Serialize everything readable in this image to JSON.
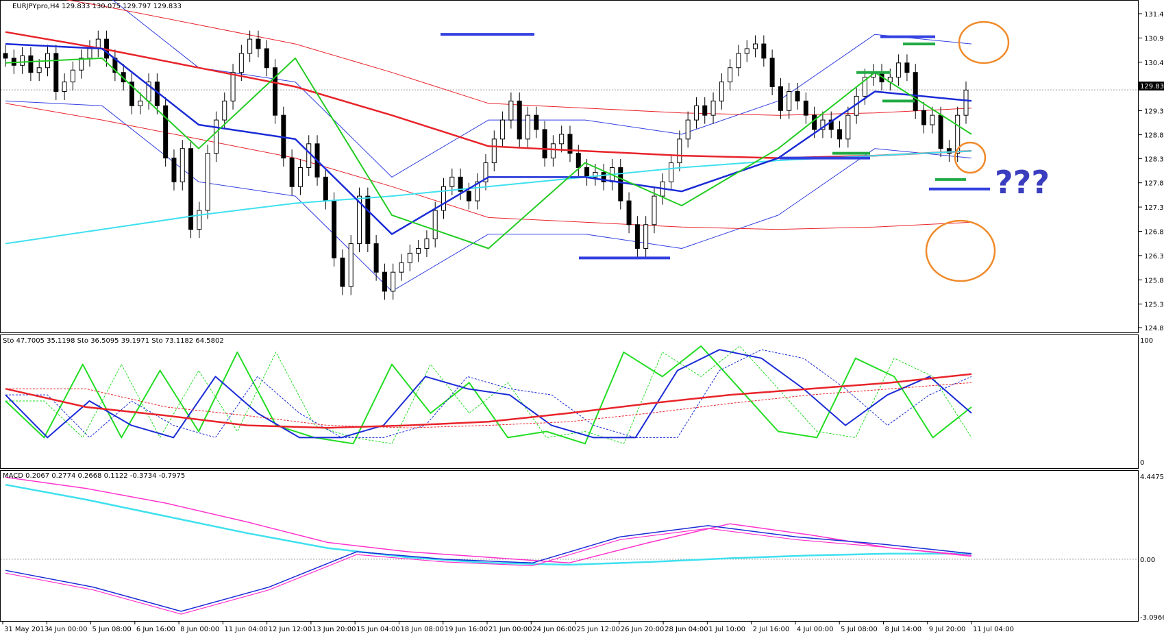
{
  "chart_data": {
    "type": "candlestick",
    "symbol_header": "EURJPYpro,H4  129.833 130.075 129.797 129.833",
    "current_price": "129.833",
    "price_axis": {
      "ticks": [
        "131.435",
        "130.925",
        "130.415",
        "129.905",
        "129.395",
        "128.890",
        "128.390",
        "127.880",
        "127.370",
        "126.860",
        "126.350",
        "125.840",
        "125.330",
        "124.835"
      ],
      "range": [
        124.835,
        131.435
      ]
    },
    "time_axis": [
      "31 May 2013",
      "4 Jun 00:00",
      "5 Jun 08:00",
      "6 Jun 16:00",
      "8 Jun 00:00",
      "11 Jun 04:00",
      "12 Jun 12:00",
      "13 Jun 20:00",
      "15 Jun 04:00",
      "18 Jun 08:00",
      "19 Jun 16:00",
      "21 Jun 00:00",
      "24 Jun 06:00",
      "25 Jun 12:00",
      "26 Jun 20:00",
      "28 Jun 04:00",
      "1 Jul 10:00",
      "2 Jul 16:00",
      "4 Jul 00:00",
      "5 Jul 08:00",
      "8 Jul 14:00",
      "9 Jul 20:00",
      "11 Jul 04:00"
    ],
    "price_series": [
      {
        "name": "close",
        "color": "#000000",
        "values": [
          130.5,
          130.35,
          130.55,
          130.2,
          130.3,
          130.6,
          129.8,
          130.0,
          130.25,
          130.5,
          130.7,
          130.9,
          130.5,
          130.2,
          130.0,
          129.5,
          129.6,
          130.0,
          129.5,
          128.4,
          127.9,
          128.6,
          126.9,
          127.3,
          128.5,
          129.2,
          129.6,
          130.2,
          130.6,
          130.9,
          130.7,
          130.3,
          129.3,
          128.4,
          127.8,
          128.2,
          128.7,
          128.0,
          127.5,
          126.3,
          125.7,
          126.6,
          127.6,
          126.6,
          126.0,
          125.6,
          126.0,
          126.2,
          126.4,
          126.5,
          126.7,
          127.3,
          127.8,
          128.0,
          127.7,
          127.5,
          127.9,
          128.3,
          128.8,
          129.2,
          129.6,
          128.8,
          129.3,
          129.0,
          128.4,
          128.7,
          128.9,
          128.5,
          128.2,
          128.0,
          128.1,
          127.9,
          128.2,
          127.5,
          127.0,
          126.5,
          127.0,
          127.6,
          127.9,
          128.3,
          128.8,
          129.2,
          129.5,
          129.3,
          129.6,
          130.0,
          130.3,
          130.6,
          130.7,
          130.8,
          130.5,
          129.9,
          129.4,
          129.8,
          129.6,
          129.3,
          129.0,
          129.2,
          129.0,
          128.8,
          129.3,
          129.7,
          130.1,
          130.2,
          130.0,
          130.1,
          130.4,
          130.2,
          129.4,
          129.1,
          129.3,
          128.6,
          128.5,
          129.3,
          129.83
        ]
      },
      {
        "name": "SMA200",
        "color": "#e8232a",
        "values": [
          131.05,
          130.7,
          130.3,
          129.9,
          129.3,
          128.65,
          128.55,
          128.45,
          128.4,
          128.45,
          128.55
        ]
      },
      {
        "name": "MA_cyan",
        "color": "#3fe0ef",
        "values": [
          126.6,
          126.9,
          127.2,
          127.45,
          127.6,
          127.8,
          128.0,
          128.2,
          128.35,
          128.45,
          128.55
        ]
      },
      {
        "name": "MA_blue",
        "color": "#1a2bd6",
        "values": [
          130.8,
          130.7,
          129.1,
          128.8,
          126.8,
          128.0,
          128.0,
          127.7,
          128.4,
          129.8,
          129.6
        ]
      },
      {
        "name": "MA_green",
        "color": "#22cc22",
        "values": [
          130.4,
          130.5,
          128.6,
          130.5,
          127.2,
          126.5,
          128.3,
          127.4,
          128.6,
          130.2,
          128.9
        ]
      }
    ],
    "annotations": {
      "text": "???"
    },
    "stochastic": {
      "header": "Sto 47.7005 35.1198  Sto 36.5095 39.1971  Sto 73.1182 64.5802",
      "axis_ticks": [
        "100",
        "0"
      ],
      "series": [
        {
          "name": "Sto fast",
          "color": "#22dd22",
          "values": [
            50,
            20,
            80,
            20,
            75,
            25,
            90,
            30,
            20,
            15,
            80,
            40,
            65,
            20,
            25,
            15,
            90,
            70,
            95,
            60,
            25,
            20,
            85,
            70,
            20,
            45
          ]
        },
        {
          "name": "Sto mid",
          "color": "#1a2bd6",
          "values": [
            55,
            20,
            50,
            30,
            20,
            70,
            40,
            20,
            20,
            30,
            70,
            60,
            55,
            30,
            20,
            20,
            75,
            92,
            85,
            60,
            30,
            55,
            70,
            40
          ]
        },
        {
          "name": "Sto slow",
          "color": "#e8232a",
          "values": [
            60,
            45,
            38,
            30,
            28,
            30,
            33,
            40,
            48,
            55,
            60,
            65,
            72
          ]
        }
      ]
    },
    "macd": {
      "header": "MACD 0.2067 0.2774 0.2668 0.1122 -0.3734 -0.7975",
      "axis_ticks": [
        "4.4475",
        "0.00",
        "-3.0966"
      ],
      "range": [
        -3.0966,
        4.4475
      ],
      "series": [
        {
          "name": "macd_cyan",
          "color": "#3fe0ef",
          "values": [
            4.0,
            3.2,
            2.3,
            1.4,
            0.6,
            0.1,
            -0.2,
            -0.3,
            -0.15,
            0.05,
            0.2,
            0.3,
            0.3
          ]
        },
        {
          "name": "macd_magenta",
          "color": "#ff33cc",
          "values": [
            4.4,
            3.8,
            3.0,
            2.0,
            0.9,
            0.4,
            0.1,
            -0.2,
            0.9,
            1.9,
            1.3,
            0.6,
            0.2
          ]
        },
        {
          "name": "macd_blue",
          "color": "#1a2bd6",
          "values": [
            -0.6,
            -1.5,
            -2.8,
            -1.5,
            0.4,
            0.0,
            -0.2,
            1.2,
            1.8,
            1.2,
            0.8,
            0.3
          ]
        }
      ]
    }
  }
}
